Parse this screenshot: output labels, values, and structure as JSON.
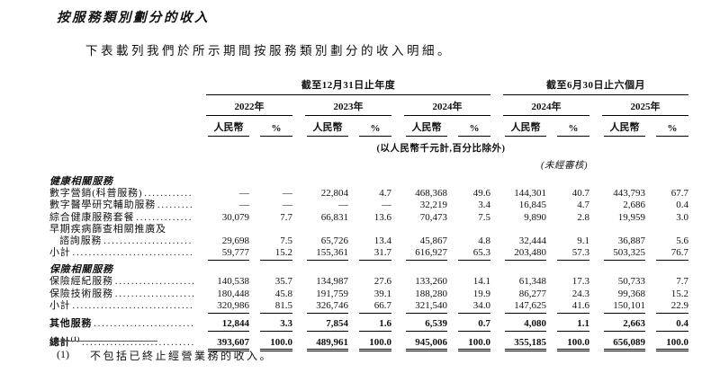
{
  "page": {
    "title": "按服務類別劃分的收入",
    "intro": "下表載列我們於所示期間按服務類別劃分的收入明細。"
  },
  "table": {
    "period_headers": [
      {
        "label": "截至12月31日止年度",
        "span": 3
      },
      {
        "label": "截至6月30日止六個月",
        "span": 2
      }
    ],
    "year_headers": [
      "2022年",
      "2023年",
      "2024年",
      "2024年",
      "2025年"
    ],
    "col_headers": {
      "rmb": "人民幣",
      "pct": "%"
    },
    "unit_note": "(以人民幣千元計,百分比除外)",
    "unaudited_note": "(未經審核)",
    "rows": [
      {
        "type": "section",
        "label": "健康相關服務"
      },
      {
        "type": "data",
        "label": "數字營銷(科普服務)",
        "values": [
          "—",
          "—",
          "22,804",
          "4.7",
          "468,368",
          "49.6",
          "144,301",
          "40.7",
          "443,793",
          "67.7"
        ]
      },
      {
        "type": "data",
        "label": "數字醫學研究輔助服務",
        "values": [
          "—",
          "—",
          "—",
          "—",
          "32,219",
          "3.4",
          "16,845",
          "4.7",
          "2,686",
          "0.4"
        ]
      },
      {
        "type": "data",
        "label": "綜合健康服務套餐",
        "values": [
          "30,079",
          "7.7",
          "66,831",
          "13.6",
          "70,473",
          "7.5",
          "9,890",
          "2.8",
          "19,959",
          "3.0"
        ]
      },
      {
        "type": "wrap",
        "label": "早期疾病篩查相關推廣及"
      },
      {
        "type": "data",
        "label": "諮詢服務",
        "indent": true,
        "values": [
          "29,698",
          "7.5",
          "65,726",
          "13.4",
          "45,867",
          "4.8",
          "32,444",
          "9.1",
          "36,887",
          "5.6"
        ]
      },
      {
        "type": "subtotal",
        "label": "小計",
        "values": [
          "59,777",
          "15.2",
          "155,361",
          "31.7",
          "616,927",
          "65.3",
          "203,480",
          "57.3",
          "503,325",
          "76.7"
        ]
      },
      {
        "type": "section",
        "label": "保險相關服務"
      },
      {
        "type": "data",
        "label": "保險經紀服務",
        "values": [
          "140,538",
          "35.7",
          "134,987",
          "27.6",
          "133,260",
          "14.1",
          "61,348",
          "17.3",
          "50,733",
          "7.7"
        ]
      },
      {
        "type": "data",
        "label": "保險技術服務",
        "values": [
          "180,448",
          "45.8",
          "191,759",
          "39.1",
          "188,280",
          "19.9",
          "86,277",
          "24.3",
          "99,368",
          "15.2"
        ]
      },
      {
        "type": "subtotal",
        "label": "小計",
        "values": [
          "320,986",
          "81.5",
          "326,746",
          "66.7",
          "321,540",
          "34.0",
          "147,625",
          "41.6",
          "150,101",
          "22.9"
        ]
      },
      {
        "type": "other",
        "label": "其他服務",
        "values": [
          "12,844",
          "3.3",
          "7,854",
          "1.6",
          "6,539",
          "0.7",
          "4,080",
          "1.1",
          "2,663",
          "0.4"
        ]
      },
      {
        "type": "total",
        "label": "總計",
        "sup": "(1)",
        "values": [
          "393,607",
          "100.0",
          "489,961",
          "100.0",
          "945,006",
          "100.0",
          "355,185",
          "100.0",
          "656,089",
          "100.0"
        ]
      }
    ]
  },
  "footnote": {
    "marker": "(1)",
    "text": "不包括已終止經營業務的收入。"
  }
}
